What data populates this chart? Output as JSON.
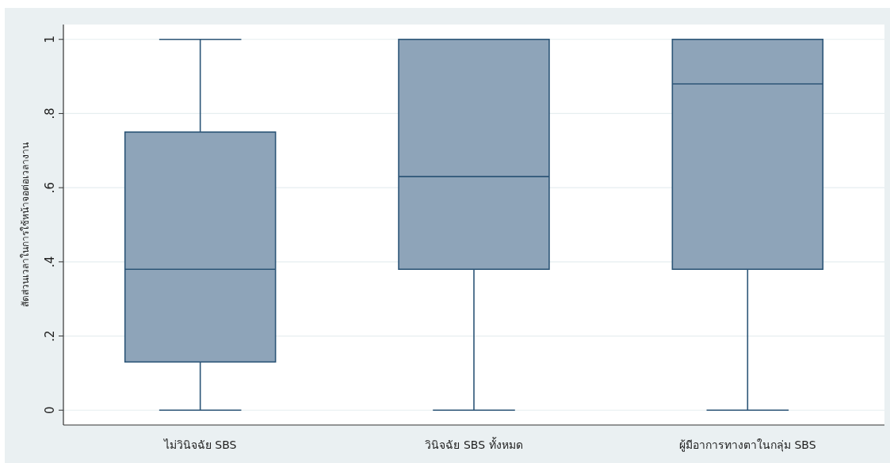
{
  "chart_data": {
    "type": "box",
    "ylabel": "สัดส่วนเวลาในการใช้หน้าจอต่อเวลางาน",
    "categories": [
      "ไม่วินิจฉัย SBS",
      "วินิจฉัย SBS ทั้งหมด",
      "ผู้มีอาการทางตาในกลุ่ม SBS"
    ],
    "color": "#8ea4b9",
    "boxes": [
      {
        "low": 0,
        "q1": 0.13,
        "median": 0.38,
        "q3": 0.75,
        "high": 1
      },
      {
        "low": 0,
        "q1": 0.38,
        "median": 0.63,
        "q3": 1,
        "high": 1
      },
      {
        "low": 0,
        "q1": 0.38,
        "median": 0.88,
        "q3": 1,
        "high": 1
      }
    ],
    "ylim": [
      -0.04,
      1.04
    ],
    "yticks": [
      0,
      {
        "value": 0.2,
        "label": ".2"
      },
      {
        "value": 0.4,
        "label": ".4"
      },
      {
        "value": 0.6,
        "label": ".6"
      },
      {
        "value": 0.8,
        "label": ".8"
      },
      1
    ],
    "grid": "y"
  }
}
